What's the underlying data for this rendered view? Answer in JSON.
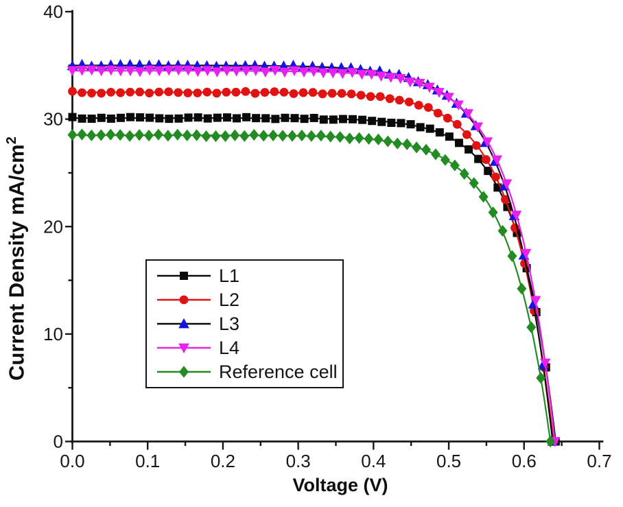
{
  "chart_data": {
    "type": "line",
    "title": "",
    "xlabel": "Voltage (V)",
    "ylabel_base": "Current Density mA/cm",
    "ylabel_superscript": "2",
    "xlim": [
      0.0,
      0.7
    ],
    "ylim": [
      0,
      40
    ],
    "x_major_ticks": [
      0.0,
      0.1,
      0.2,
      0.3,
      0.4,
      0.5,
      0.6,
      0.7
    ],
    "x_tick_labels": [
      "0.0",
      "0.1",
      "0.2",
      "0.3",
      "0.4",
      "0.5",
      "0.6",
      "0.7"
    ],
    "x_minor_step": 0.05,
    "y_major_ticks": [
      0,
      10,
      20,
      30,
      40
    ],
    "y_tick_labels": [
      "0",
      "10",
      "20",
      "30",
      "40"
    ],
    "y_minor_step": 5,
    "grid": false,
    "axis_color": "#161616",
    "background_color": "#ffffff",
    "legend_position": "inside-left-center",
    "series": [
      {
        "name": "L1",
        "marker": "square",
        "marker_color": "#0a0a0a",
        "line_color": "#0a0a0a",
        "jsc_mA_cm2": 30.1,
        "voc_V": 0.642,
        "model": {
          "jsc": 30.1,
          "voc": 0.642,
          "a_V": 0.05
        },
        "points_V_J": [
          [
            0.0,
            30.1
          ],
          [
            0.05,
            30.1
          ],
          [
            0.1,
            30.1
          ],
          [
            0.15,
            30.1
          ],
          [
            0.2,
            30.1
          ],
          [
            0.25,
            30.09
          ],
          [
            0.3,
            30.07
          ],
          [
            0.35,
            30.01
          ],
          [
            0.4,
            29.86
          ],
          [
            0.45,
            29.45
          ],
          [
            0.5,
            28.34
          ],
          [
            0.55,
            25.32
          ],
          [
            0.6,
            17.11
          ],
          [
            0.62,
            10.72
          ],
          [
            0.642,
            0.0
          ]
        ]
      },
      {
        "name": "L2",
        "marker": "circle",
        "marker_color": "#e01313",
        "line_color": "#e01313",
        "jsc_mA_cm2": 32.5,
        "voc_V": 0.639,
        "model": {
          "jsc": 32.5,
          "voc": 0.639,
          "a_V": 0.054
        },
        "points_V_J": [
          [
            0.0,
            32.5
          ],
          [
            0.05,
            32.5
          ],
          [
            0.1,
            32.5
          ],
          [
            0.15,
            32.5
          ],
          [
            0.2,
            32.49
          ],
          [
            0.25,
            32.48
          ],
          [
            0.3,
            32.44
          ],
          [
            0.35,
            32.35
          ],
          [
            0.4,
            32.11
          ],
          [
            0.45,
            31.52
          ],
          [
            0.5,
            30.02
          ],
          [
            0.55,
            26.25
          ],
          [
            0.6,
            16.71
          ],
          [
            0.62,
            9.65
          ],
          [
            0.639,
            0.0
          ]
        ]
      },
      {
        "name": "L3",
        "marker": "triangle-up",
        "marker_color": "#1414e0",
        "line_color": "#0a0a0a",
        "jsc_mA_cm2": 35.0,
        "voc_V": 0.638,
        "model": {
          "jsc": 35.0,
          "voc": 0.638,
          "a_V": 0.056
        },
        "points_V_J": [
          [
            0.0,
            35.0
          ],
          [
            0.05,
            35.0
          ],
          [
            0.1,
            35.0
          ],
          [
            0.15,
            35.0
          ],
          [
            0.2,
            34.99
          ],
          [
            0.25,
            34.97
          ],
          [
            0.3,
            34.92
          ],
          [
            0.35,
            34.8
          ],
          [
            0.4,
            34.5
          ],
          [
            0.45,
            33.78
          ],
          [
            0.5,
            32.01
          ],
          [
            0.55,
            27.71
          ],
          [
            0.6,
            17.18
          ],
          [
            0.62,
            9.56
          ],
          [
            0.638,
            0.0
          ]
        ]
      },
      {
        "name": "L4",
        "marker": "triangle-down",
        "marker_color": "#e822ee",
        "line_color": "#e822ee",
        "jsc_mA_cm2": 34.5,
        "voc_V": 0.641,
        "model": {
          "jsc": 34.5,
          "voc": 0.641,
          "a_V": 0.054
        },
        "points_V_J": [
          [
            0.0,
            34.5
          ],
          [
            0.05,
            34.5
          ],
          [
            0.1,
            34.5
          ],
          [
            0.15,
            34.5
          ],
          [
            0.2,
            34.49
          ],
          [
            0.25,
            34.48
          ],
          [
            0.3,
            34.44
          ],
          [
            0.35,
            34.34
          ],
          [
            0.4,
            34.1
          ],
          [
            0.45,
            33.5
          ],
          [
            0.5,
            31.97
          ],
          [
            0.55,
            28.1
          ],
          [
            0.6,
            18.34
          ],
          [
            0.62,
            11.12
          ],
          [
            0.641,
            0.0
          ]
        ]
      },
      {
        "name": "Reference cell",
        "marker": "diamond",
        "marker_color": "#228b22",
        "line_color": "#228b22",
        "jsc_mA_cm2": 28.5,
        "voc_V": 0.635,
        "model": {
          "jsc": 28.5,
          "voc": 0.635,
          "a_V": 0.055
        },
        "points_V_J": [
          [
            0.0,
            28.5
          ],
          [
            0.05,
            28.5
          ],
          [
            0.1,
            28.5
          ],
          [
            0.15,
            28.5
          ],
          [
            0.2,
            28.49
          ],
          [
            0.25,
            28.47
          ],
          [
            0.3,
            28.44
          ],
          [
            0.35,
            28.34
          ],
          [
            0.4,
            28.1
          ],
          [
            0.45,
            27.51
          ],
          [
            0.5,
            26.05
          ],
          [
            0.55,
            22.42
          ],
          [
            0.6,
            13.4
          ],
          [
            0.62,
            6.78
          ],
          [
            0.635,
            0.0
          ]
        ]
      }
    ]
  }
}
